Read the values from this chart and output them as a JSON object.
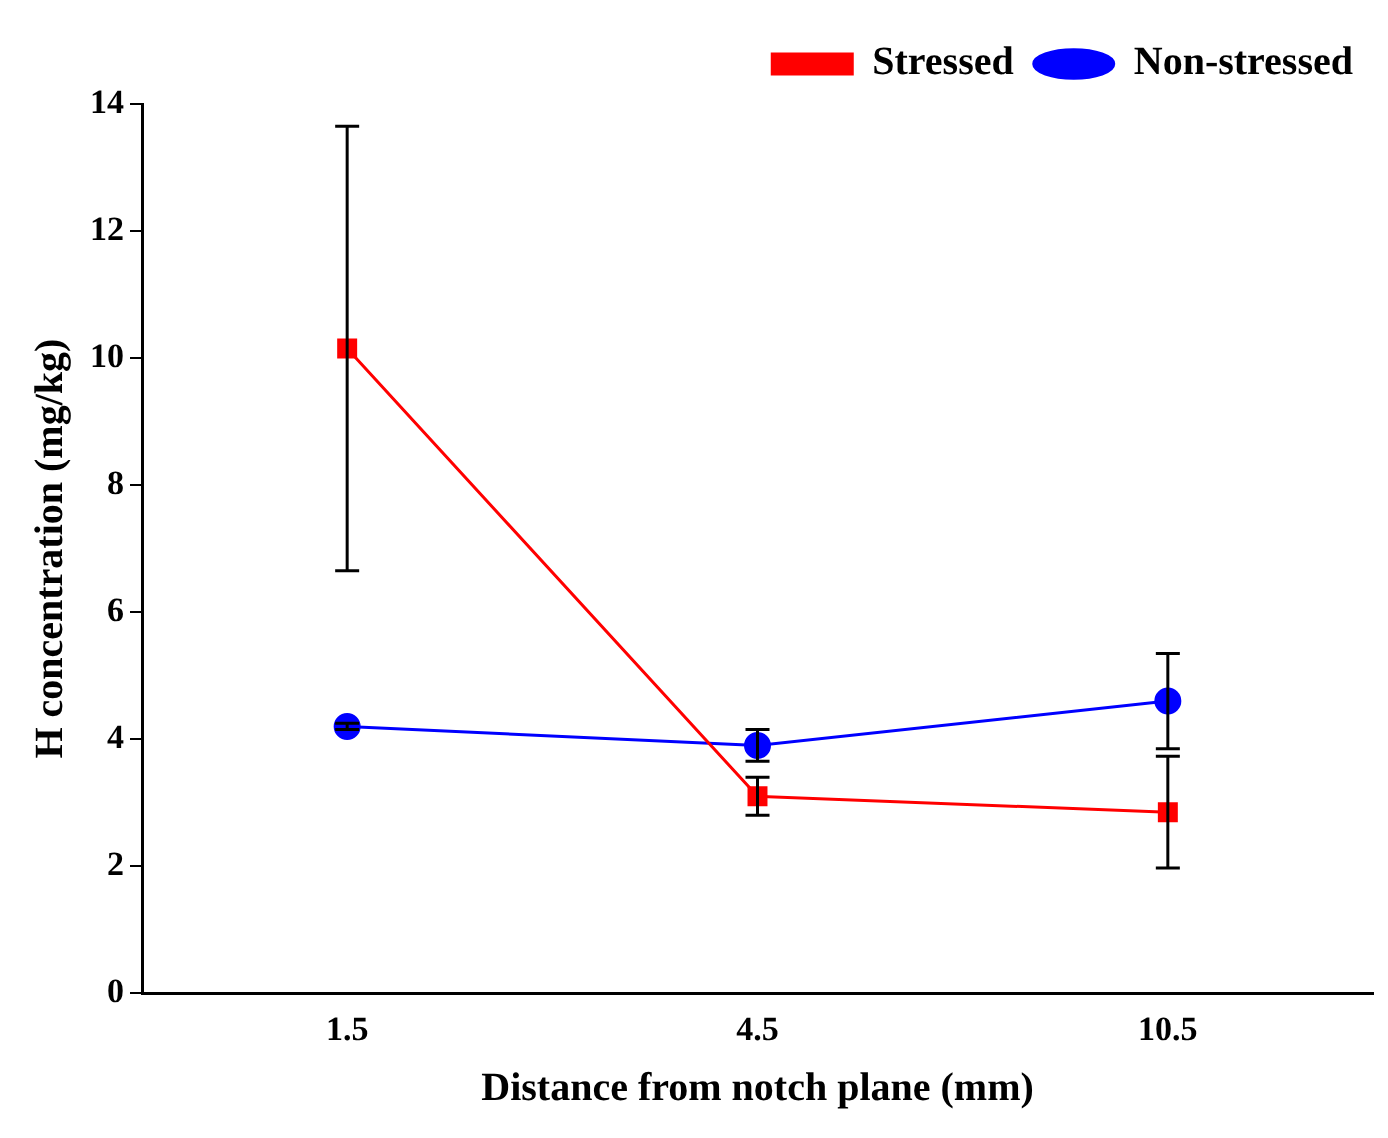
{
  "chart_data": {
    "type": "line",
    "xlabel": "Distance from notch plane (mm)",
    "ylabel": "H concentration (mg/kg)",
    "categories": [
      "1.5",
      "4.5",
      "10.5"
    ],
    "ylim": [
      0,
      14
    ],
    "yticks": [
      0,
      2,
      4,
      6,
      8,
      10,
      12,
      14
    ],
    "grid": false,
    "legend": "top right",
    "series": [
      {
        "name": "Stressed",
        "color": "#ff0000",
        "marker": "square",
        "values": [
          10.15,
          3.1,
          2.85
        ],
        "errors": [
          3.5,
          0.3,
          0.88
        ]
      },
      {
        "name": "Non-stressed",
        "color": "#0000ff",
        "marker": "circle",
        "values": [
          4.2,
          3.9,
          4.6
        ],
        "errors": [
          0.05,
          0.25,
          0.75
        ]
      }
    ]
  }
}
